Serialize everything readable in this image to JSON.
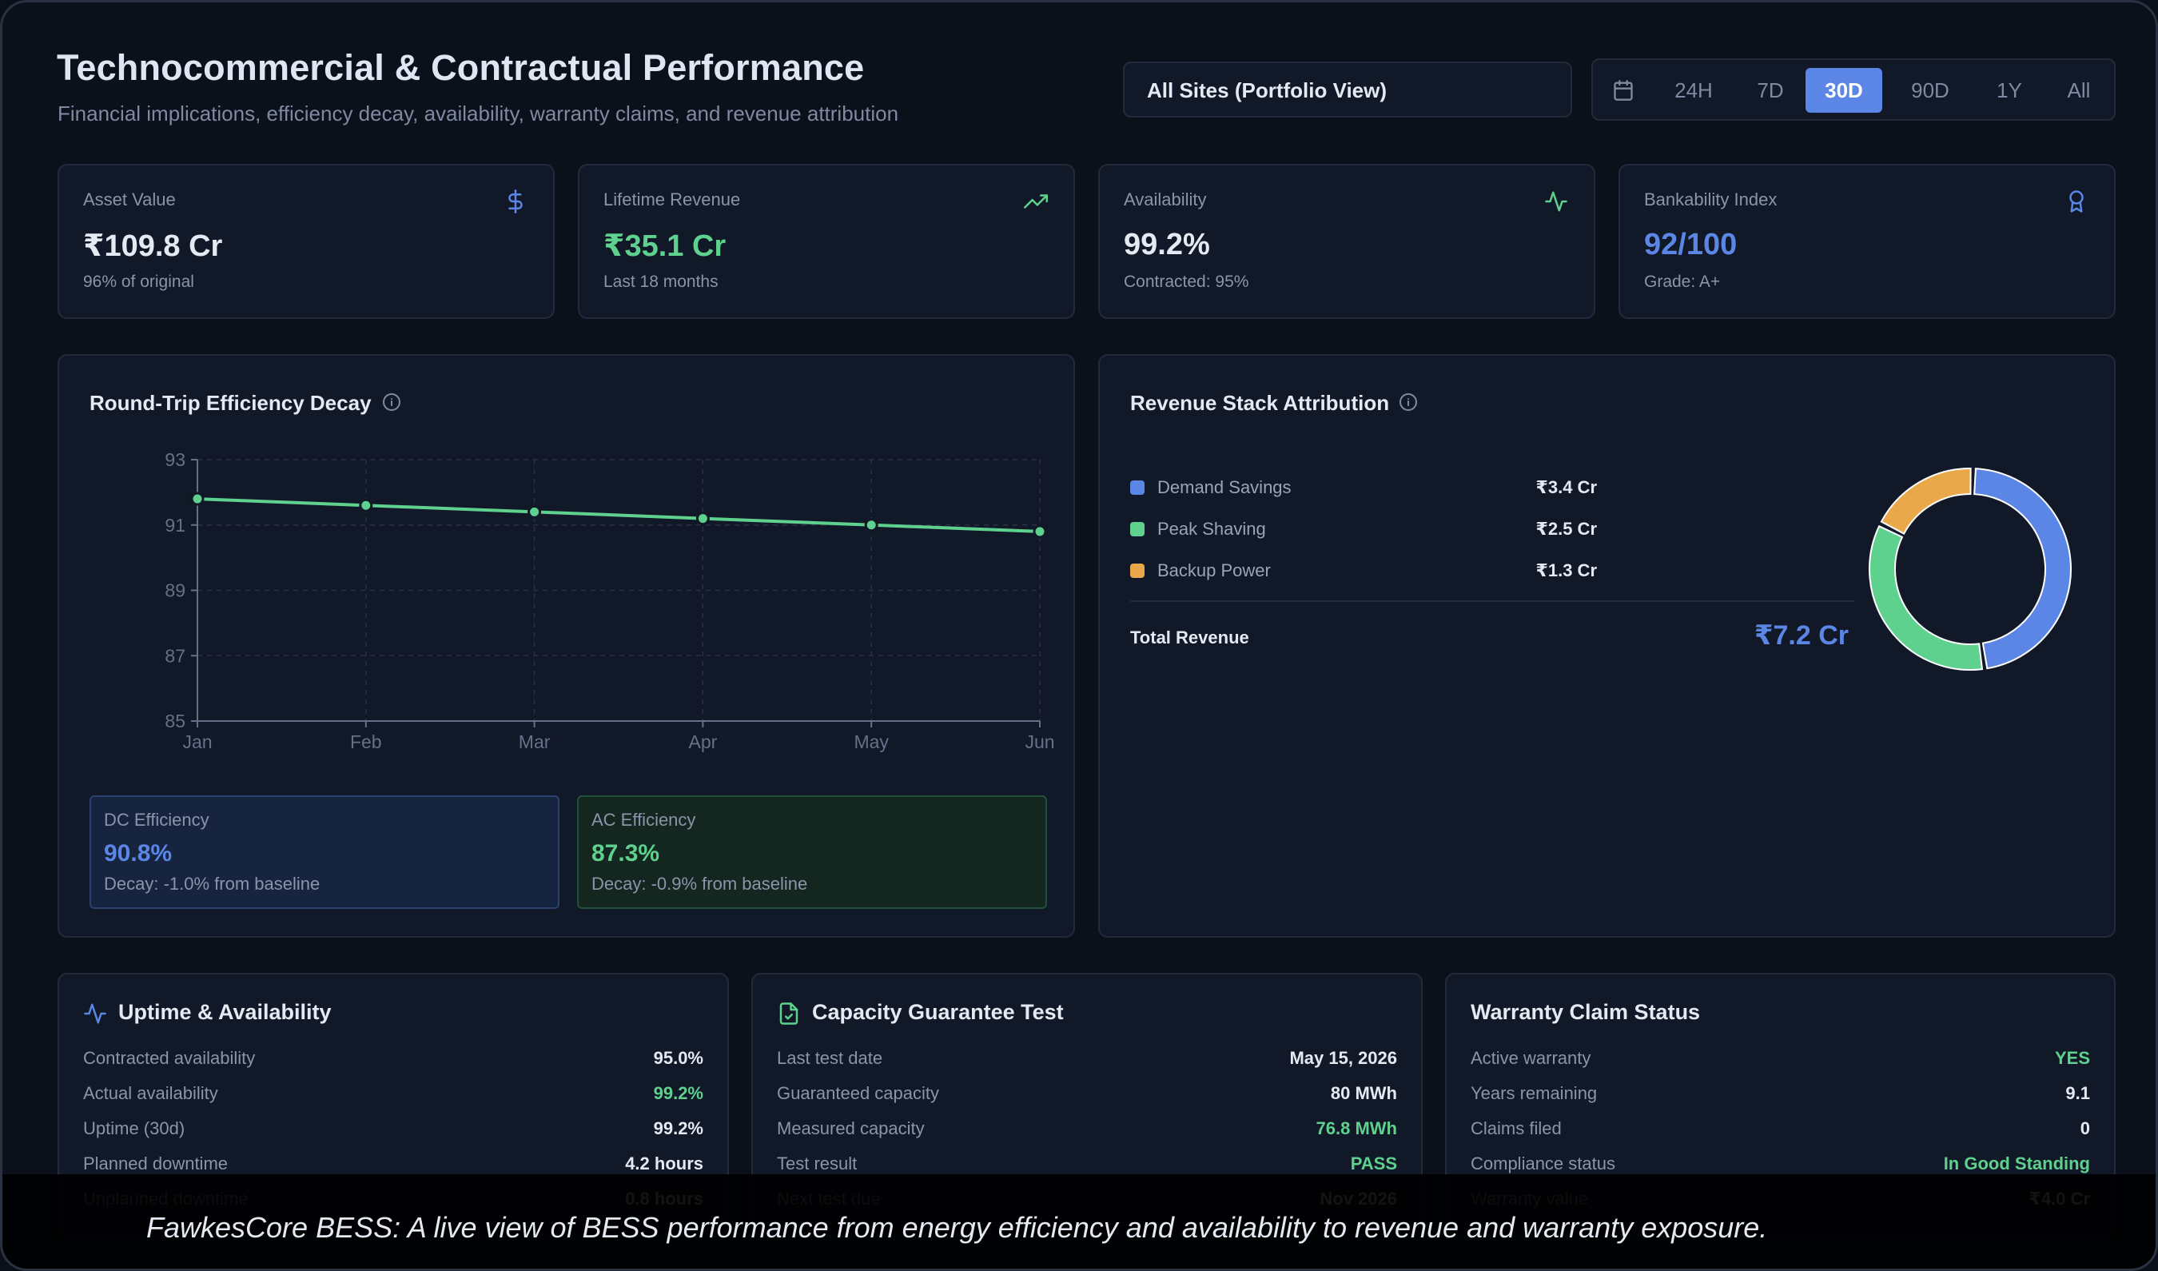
{
  "header": {
    "title": "Technocommercial & Contractual Performance",
    "subtitle": "Financial implications, efficiency decay, availability, warranty claims, and revenue attribution"
  },
  "site_select": {
    "value": "All Sites (Portfolio View)"
  },
  "time_range": {
    "icon": "calendar-icon",
    "options": [
      "24H",
      "7D",
      "30D",
      "90D",
      "1Y",
      "All"
    ],
    "selected": "30D"
  },
  "kpis": [
    {
      "label": "Asset Value",
      "value": "₹109.8 Cr",
      "sub": "96% of original",
      "icon": "dollar-icon",
      "color": "#e5e9f2",
      "icon_color": "#5b86e5"
    },
    {
      "label": "Lifetime Revenue",
      "value": "₹35.1 Cr",
      "sub": "Last 18 months",
      "icon": "trending-up-icon",
      "color": "#5fd18e",
      "icon_color": "#5fd18e"
    },
    {
      "label": "Availability",
      "value": "99.2%",
      "sub": "Contracted: 95%",
      "icon": "activity-icon",
      "color": "#e5e9f2",
      "icon_color": "#5fd18e"
    },
    {
      "label": "Bankability Index",
      "value": "92/100",
      "sub": "Grade: A+",
      "icon": "award-icon",
      "color": "#5b86e5",
      "icon_color": "#5b86e5"
    }
  ],
  "efficiency": {
    "title": "Round-Trip Efficiency Decay",
    "dc": {
      "label": "DC Efficiency",
      "value": "90.8%",
      "sub": "Decay: -1.0% from baseline"
    },
    "ac": {
      "label": "AC Efficiency",
      "value": "87.3%",
      "sub": "Decay: -0.9% from baseline"
    }
  },
  "chart_data": [
    {
      "type": "line",
      "title": "Round-Trip Efficiency Decay",
      "x": [
        "Jan",
        "Feb",
        "Mar",
        "Apr",
        "May",
        "Jun"
      ],
      "series": [
        {
          "values": [
            91.8,
            91.6,
            91.4,
            91.2,
            91.0,
            90.8
          ]
        }
      ],
      "ylim": [
        85,
        93
      ],
      "yticks": [
        85,
        87,
        89,
        91,
        93
      ],
      "grid": true,
      "color": "#5fd18e"
    },
    {
      "type": "pie",
      "title": "Revenue Stack Attribution",
      "categories": [
        "Demand Savings",
        "Peak Shaving",
        "Backup Power"
      ],
      "values": [
        3.4,
        2.5,
        1.3
      ],
      "value_labels": [
        "₹3.4 Cr",
        "₹2.5 Cr",
        "₹1.3 Cr"
      ],
      "colors": [
        "#5b86e5",
        "#5fd18e",
        "#e9a84a"
      ],
      "total_label": "Total Revenue",
      "total_value": "₹7.2 Cr"
    }
  ],
  "uptime": {
    "title": "Uptime & Availability",
    "icon": "activity-icon",
    "rows": [
      {
        "k": "Contracted availability",
        "v": "95.0%",
        "color": "#e5e9f2"
      },
      {
        "k": "Actual availability",
        "v": "99.2%",
        "color": "#5fd18e"
      },
      {
        "k": "Uptime (30d)",
        "v": "99.2%",
        "color": "#e5e9f2"
      },
      {
        "k": "Planned downtime",
        "v": "4.2 hours",
        "color": "#e5e9f2"
      },
      {
        "k": "Unplanned downtime",
        "v": "0.8 hours",
        "color": "#e5e9f2"
      }
    ]
  },
  "capacity": {
    "title": "Capacity Guarantee Test",
    "icon": "file-check-icon",
    "rows": [
      {
        "k": "Last test date",
        "v": "May 15, 2026",
        "color": "#e5e9f2"
      },
      {
        "k": "Guaranteed capacity",
        "v": "80 MWh",
        "color": "#e5e9f2"
      },
      {
        "k": "Measured capacity",
        "v": "76.8 MWh",
        "color": "#5fd18e"
      },
      {
        "k": "Test result",
        "v": "PASS",
        "color": "#5fd18e"
      },
      {
        "k": "Next test due",
        "v": "Nov 2026",
        "color": "#e5e9f2"
      }
    ]
  },
  "warranty": {
    "title": "Warranty Claim Status",
    "rows": [
      {
        "k": "Active warranty",
        "v": "YES",
        "color": "#5fd18e"
      },
      {
        "k": "Years remaining",
        "v": "9.1",
        "color": "#e5e9f2"
      },
      {
        "k": "Claims filed",
        "v": "0",
        "color": "#e5e9f2"
      },
      {
        "k": "Compliance status",
        "v": "In Good Standing",
        "color": "#5fd18e"
      },
      {
        "k": "Warranty value",
        "v": "₹4.0 Cr",
        "color": "#e5e9f2"
      }
    ]
  },
  "caption": "FawkesCore BESS: A live view of BESS performance from energy efficiency and availability to revenue and warranty exposure."
}
